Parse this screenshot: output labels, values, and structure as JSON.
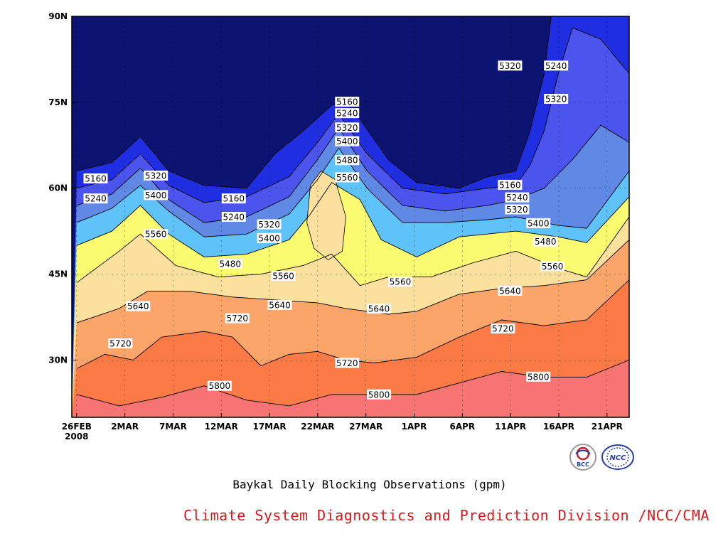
{
  "chart_data": {
    "type": "contour",
    "title": "Baykal Daily Blocking Observations (gpm)",
    "x_tick_labels": [
      "26FEB",
      "2MAR",
      "7MAR",
      "12MAR",
      "17MAR",
      "22MAR",
      "27MAR",
      "1APR",
      "6APR",
      "11APR",
      "16APR",
      "21APR"
    ],
    "x_tick_year": "2008",
    "y_tick_labels": [
      "30N",
      "45N",
      "60N",
      "75N",
      "90N"
    ],
    "y_tick_values": [
      30,
      45,
      60,
      75,
      90
    ],
    "ylim": [
      20,
      90
    ],
    "x_range_days": [
      "2008-02-26",
      "2008-04-23"
    ],
    "levels": [
      5160,
      5240,
      5320,
      5400,
      5480,
      5560,
      5640,
      5720,
      5800
    ],
    "fill_colors": [
      "#0d1370",
      "#1e2ee0",
      "#4b55ee",
      "#6089e6",
      "#5fc3f9",
      "#fbfb72",
      "#fbe09e",
      "#fba56a",
      "#fb7a45",
      "#f87473"
    ],
    "contour_lines": [
      {
        "level": 5800,
        "points": [
          [
            0,
            24.0
          ],
          [
            6,
            22.0
          ],
          [
            12,
            23.5
          ],
          [
            18,
            25.5
          ],
          [
            24,
            23.0
          ],
          [
            30,
            22.0
          ],
          [
            36,
            24.0
          ],
          [
            42,
            24.0
          ],
          [
            48,
            24.0
          ],
          [
            54,
            26.0
          ],
          [
            60,
            28.0
          ],
          [
            66,
            27.0
          ],
          [
            72,
            27.0
          ],
          [
            78,
            30.0
          ]
        ]
      },
      {
        "level": 5720,
        "points": [
          [
            0,
            28.5
          ],
          [
            4,
            31.0
          ],
          [
            8,
            30.0
          ],
          [
            12,
            34.0
          ],
          [
            18,
            35.0
          ],
          [
            22,
            34.0
          ],
          [
            26,
            29.0
          ],
          [
            30,
            31.0
          ],
          [
            34,
            31.5
          ],
          [
            38,
            30.0
          ],
          [
            42,
            29.5
          ],
          [
            48,
            30.5
          ],
          [
            54,
            34.0
          ],
          [
            60,
            37.0
          ],
          [
            66,
            36.0
          ],
          [
            72,
            37.0
          ],
          [
            78,
            44.0
          ]
        ]
      },
      {
        "level": 5640,
        "points": [
          [
            0,
            36.5
          ],
          [
            6,
            39.0
          ],
          [
            10,
            42.0
          ],
          [
            16,
            42.0
          ],
          [
            22,
            41.0
          ],
          [
            28,
            40.5
          ],
          [
            34,
            40.0
          ],
          [
            38,
            39.0
          ],
          [
            44,
            38.0
          ],
          [
            48,
            38.5
          ],
          [
            54,
            41.5
          ],
          [
            60,
            42.5
          ],
          [
            66,
            43.0
          ],
          [
            72,
            44.0
          ],
          [
            78,
            51.0
          ]
        ]
      },
      {
        "level": 5560,
        "points": [
          [
            0,
            43.5
          ],
          [
            6,
            49.0
          ],
          [
            9,
            52.0
          ],
          [
            14,
            46.5
          ],
          [
            20,
            44.5
          ],
          [
            26,
            45.0
          ],
          [
            32,
            46.5
          ],
          [
            36,
            48.5
          ],
          [
            40,
            43.0
          ],
          [
            44,
            44.5
          ],
          [
            50,
            44.5
          ],
          [
            56,
            47.0
          ],
          [
            62,
            49.0
          ],
          [
            68,
            46.0
          ],
          [
            72,
            44.5
          ],
          [
            78,
            55.0
          ]
        ]
      },
      {
        "level": 5480,
        "points": [
          [
            0,
            50.0
          ],
          [
            5,
            52.5
          ],
          [
            9,
            57.0
          ],
          [
            13,
            52.0
          ],
          [
            18,
            48.0
          ],
          [
            24,
            48.5
          ],
          [
            30,
            51.0
          ],
          [
            33,
            55.5
          ],
          [
            36,
            61.0
          ],
          [
            40,
            58.0
          ],
          [
            43,
            51.0
          ],
          [
            48,
            48.0
          ],
          [
            54,
            51.5
          ],
          [
            58,
            52.0
          ],
          [
            62,
            52.5
          ],
          [
            68,
            51.5
          ],
          [
            72,
            50.5
          ],
          [
            78,
            58.5
          ]
        ]
      },
      {
        "level": 5400,
        "points": [
          [
            0,
            54.0
          ],
          [
            5,
            56.5
          ],
          [
            9,
            60.5
          ],
          [
            13,
            56.0
          ],
          [
            18,
            51.5
          ],
          [
            24,
            52.0
          ],
          [
            30,
            55.5
          ],
          [
            34,
            61.5
          ],
          [
            37,
            67.0
          ],
          [
            41,
            60.0
          ],
          [
            46,
            54.0
          ],
          [
            52,
            54.0
          ],
          [
            58,
            54.5
          ],
          [
            62,
            55.0
          ],
          [
            68,
            53.5
          ],
          [
            72,
            53.0
          ],
          [
            78,
            63.0
          ]
        ]
      },
      {
        "level": 5320,
        "points": [
          [
            0,
            57.0
          ],
          [
            5,
            59.0
          ],
          [
            9,
            63.5
          ],
          [
            13,
            58.0
          ],
          [
            18,
            54.0
          ],
          [
            24,
            55.0
          ],
          [
            30,
            58.5
          ],
          [
            34,
            65.0
          ],
          [
            37,
            70.5
          ],
          [
            41,
            63.0
          ],
          [
            46,
            57.0
          ],
          [
            52,
            56.0
          ],
          [
            58,
            57.0
          ],
          [
            62,
            58.0
          ],
          [
            66,
            60.0
          ],
          [
            70,
            65.0
          ],
          [
            74,
            71.0
          ],
          [
            78,
            68.0
          ]
        ]
      },
      {
        "level": 5240,
        "points": [
          [
            0,
            60.0
          ],
          [
            5,
            61.5
          ],
          [
            9,
            66.0
          ],
          [
            13,
            60.5
          ],
          [
            18,
            57.5
          ],
          [
            24,
            58.5
          ],
          [
            30,
            62.0
          ],
          [
            34,
            68.0
          ],
          [
            37,
            73.0
          ],
          [
            41,
            66.0
          ],
          [
            46,
            60.0
          ],
          [
            52,
            59.0
          ],
          [
            58,
            60.0
          ],
          [
            62,
            60.5
          ],
          [
            64,
            64.0
          ],
          [
            66,
            70.0
          ],
          [
            68,
            80.0
          ],
          [
            70,
            88.0
          ],
          [
            74,
            86.0
          ],
          [
            78,
            80.0
          ]
        ]
      },
      {
        "level": 5160,
        "points": [
          [
            0,
            63.0
          ],
          [
            5,
            64.5
          ],
          [
            9,
            69.0
          ],
          [
            13,
            63.0
          ],
          [
            18,
            60.5
          ],
          [
            24,
            60.0
          ],
          [
            28,
            66.0
          ],
          [
            32,
            70.0
          ],
          [
            36,
            74.5
          ],
          [
            38,
            75.0
          ],
          [
            40,
            72.0
          ],
          [
            44,
            65.0
          ],
          [
            48,
            61.0
          ],
          [
            54,
            60.0
          ],
          [
            58,
            62.0
          ],
          [
            62,
            63.0
          ],
          [
            64,
            70.0
          ],
          [
            66,
            80.0
          ],
          [
            67,
            90.0
          ]
        ]
      }
    ],
    "contour_labels": [
      {
        "text": "5160",
        "x": 2,
        "y": 61.7
      },
      {
        "text": "5240",
        "x": 2,
        "y": 58.2
      },
      {
        "text": "5320",
        "x": 10.5,
        "y": 62.2
      },
      {
        "text": "5400",
        "x": 10.5,
        "y": 58.8
      },
      {
        "text": "5560",
        "x": 10.5,
        "y": 52.0
      },
      {
        "text": "5160",
        "x": 21.5,
        "y": 58.2
      },
      {
        "text": "5240",
        "x": 21.5,
        "y": 55.0
      },
      {
        "text": "5320",
        "x": 26.5,
        "y": 53.7
      },
      {
        "text": "5400",
        "x": 26.5,
        "y": 51.3
      },
      {
        "text": "5480",
        "x": 21,
        "y": 46.8
      },
      {
        "text": "5560",
        "x": 28.5,
        "y": 44.7
      },
      {
        "text": "5640",
        "x": 28,
        "y": 39.6
      },
      {
        "text": "5640",
        "x": 8,
        "y": 39.4
      },
      {
        "text": "5720",
        "x": 5.5,
        "y": 32.9
      },
      {
        "text": "5720",
        "x": 22,
        "y": 37.3
      },
      {
        "text": "5800",
        "x": 19.5,
        "y": 25.5
      },
      {
        "text": "5160",
        "x": 37.5,
        "y": 75.1
      },
      {
        "text": "5240",
        "x": 37.5,
        "y": 73.1
      },
      {
        "text": "5320",
        "x": 37.5,
        "y": 70.6
      },
      {
        "text": "5400",
        "x": 37.5,
        "y": 68.2
      },
      {
        "text": "5480",
        "x": 37.5,
        "y": 64.9
      },
      {
        "text": "5560",
        "x": 37.5,
        "y": 61.9
      },
      {
        "text": "5720",
        "x": 37.5,
        "y": 29.5
      },
      {
        "text": "5800",
        "x": 42,
        "y": 24.0
      },
      {
        "text": "5560",
        "x": 45,
        "y": 43.7
      },
      {
        "text": "5640",
        "x": 42,
        "y": 39.0
      },
      {
        "text": "5160",
        "x": 60.5,
        "y": 60.6
      },
      {
        "text": "5240",
        "x": 61.5,
        "y": 58.4
      },
      {
        "text": "5320",
        "x": 61.5,
        "y": 56.3
      },
      {
        "text": "5400",
        "x": 64.5,
        "y": 53.9
      },
      {
        "text": "5480",
        "x": 65.5,
        "y": 50.7
      },
      {
        "text": "5560",
        "x": 66.5,
        "y": 46.4
      },
      {
        "text": "5640",
        "x": 60.5,
        "y": 42.1
      },
      {
        "text": "5720",
        "x": 59.5,
        "y": 35.5
      },
      {
        "text": "5800",
        "x": 64.5,
        "y": 27.1
      },
      {
        "text": "5320",
        "x": 60.5,
        "y": 81.4
      },
      {
        "text": "5240",
        "x": 67,
        "y": 81.4
      },
      {
        "text": "5320",
        "x": 67,
        "y": 75.6
      }
    ]
  },
  "caption": "Baykal Daily Blocking Observations (gpm)",
  "credit": "Climate System Diagnostics and Prediction Division /NCC/CMA",
  "logos": [
    "bcc-logo",
    "ncc-logo"
  ],
  "logo_text": {
    "bcc": "BCC",
    "ncc": "NCC"
  },
  "colors": {
    "credit": "#e0151b",
    "frame": "#000000"
  }
}
